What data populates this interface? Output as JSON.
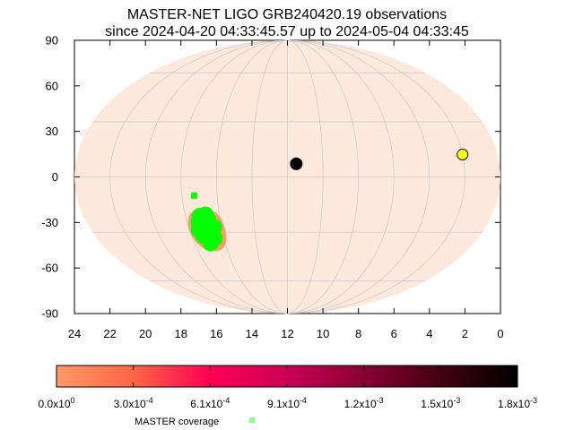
{
  "chart_data": {
    "type": "scatter",
    "title": "MASTER-NET LIGO GRB240420.19 observations",
    "subtitle": "since 2024-04-20 04:33:45.57 up to 2024-05-04 04:33:45",
    "projection": "mollweide",
    "x_ticks": [
      "24",
      "22",
      "20",
      "18",
      "16",
      "14",
      "12",
      "10",
      "8",
      "6",
      "4",
      "2",
      "0"
    ],
    "y_ticks": [
      "90",
      "60",
      "30",
      "0",
      "-30",
      "-60",
      "-90"
    ],
    "xlim": [
      24,
      0
    ],
    "ylim": [
      -90,
      90
    ],
    "grid": true,
    "probability_region": {
      "ra_hours": 16.9,
      "dec_deg": -29,
      "ra_halfwidth_hours": 1.1,
      "dec_halfwidth_deg": 13,
      "color": "#ff9966"
    },
    "master_coverage": {
      "ra_hours": 16.9,
      "dec_deg": -28,
      "color": "#00ff00"
    },
    "markers": [
      {
        "kind": "moon",
        "ra_hours": 11.5,
        "dec_deg": 7,
        "color": "#000000"
      },
      {
        "kind": "sun",
        "ra_hours": 2.0,
        "dec_deg": 12,
        "color": "#ffff00"
      }
    ],
    "colorbar": {
      "ticks": [
        "0.0x10^0",
        "3.0x10^-4",
        "6.1x10^-4",
        "9.1x10^-4",
        "1.2x10^-3",
        "1.5x10^-3",
        "1.8x10^-3"
      ],
      "colors": [
        "#ff9966",
        "#ff6644",
        "#ff0055",
        "#cc0055",
        "#880033",
        "#440011",
        "#000000"
      ]
    },
    "legend": {
      "label": "MASTER coverage",
      "color": "#00ff00"
    },
    "sky_color": "#fde9dc",
    "grid_color": "#c8c8c8"
  }
}
